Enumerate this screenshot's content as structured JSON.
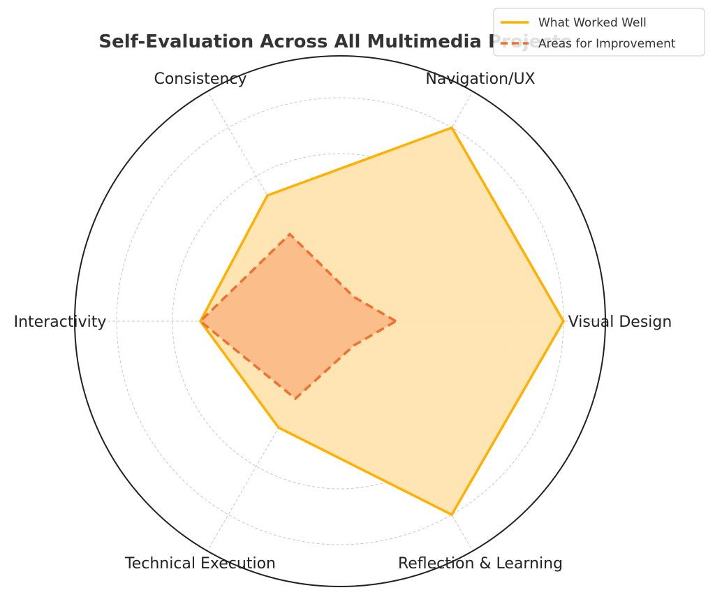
{
  "chart_data": {
    "type": "radar",
    "title": "Self-Evaluation Across All Multimedia Projects",
    "categories": [
      "Visual Design",
      "Navigation/UX",
      "Consistency",
      "Interactivity",
      "Technical Execution",
      "Reflection & Learning"
    ],
    "rlim": [
      0,
      4
    ],
    "rings": 4,
    "grid": true,
    "legend_position": "top-right",
    "series": [
      {
        "name": "What Worked Well",
        "values": [
          4,
          4,
          2.6,
          2.5,
          2.2,
          4
        ],
        "color": "#FFB000",
        "fill": "#FFE3B0",
        "line_style": "solid"
      },
      {
        "name": "Areas for Improvement",
        "values": [
          1,
          0.5,
          1.8,
          2.5,
          1.6,
          0.5
        ],
        "color": "#F07030",
        "fill": "#F9B27C",
        "line_style": "dashed"
      }
    ]
  }
}
